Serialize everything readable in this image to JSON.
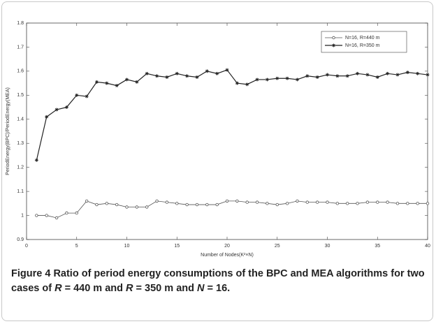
{
  "chart_data": {
    "type": "line",
    "xlabel": "Number of Nodes(K²×N)",
    "ylabel": "PeriodEnergy(BPC)/PeriodEnergy(MEA)",
    "x": [
      1,
      2,
      3,
      4,
      5,
      6,
      7,
      8,
      9,
      10,
      11,
      12,
      13,
      14,
      15,
      16,
      17,
      18,
      19,
      20,
      21,
      22,
      23,
      24,
      25,
      26,
      27,
      28,
      29,
      30,
      31,
      32,
      33,
      34,
      35,
      36,
      37,
      38,
      39,
      40
    ],
    "series": [
      {
        "name": "N=16, R=440 m",
        "color": "#555555",
        "marker": "circle",
        "values": [
          1.0,
          1.0,
          0.99,
          1.01,
          1.01,
          1.06,
          1.045,
          1.05,
          1.045,
          1.035,
          1.035,
          1.035,
          1.06,
          1.055,
          1.05,
          1.045,
          1.045,
          1.045,
          1.045,
          1.06,
          1.06,
          1.055,
          1.055,
          1.05,
          1.045,
          1.05,
          1.06,
          1.055,
          1.055,
          1.055,
          1.05,
          1.05,
          1.05,
          1.055,
          1.055,
          1.055,
          1.05,
          1.05,
          1.05,
          1.05
        ]
      },
      {
        "name": "N=16, R=350 m",
        "color": "#222222",
        "marker": "star",
        "values": [
          1.23,
          1.41,
          1.44,
          1.45,
          1.5,
          1.495,
          1.555,
          1.55,
          1.54,
          1.565,
          1.555,
          1.59,
          1.58,
          1.575,
          1.59,
          1.58,
          1.575,
          1.6,
          1.59,
          1.605,
          1.55,
          1.545,
          1.565,
          1.565,
          1.57,
          1.57,
          1.565,
          1.58,
          1.575,
          1.585,
          1.58,
          1.58,
          1.59,
          1.585,
          1.575,
          1.59,
          1.585,
          1.595,
          1.59,
          1.585
        ]
      }
    ],
    "xlim": [
      0,
      40
    ],
    "xticks": [
      0,
      5,
      10,
      15,
      20,
      25,
      30,
      35,
      40
    ],
    "ylim": [
      0.9,
      1.8
    ],
    "yticks": [
      0.9,
      1,
      1.1,
      1.2,
      1.3,
      1.4,
      1.5,
      1.6,
      1.7,
      1.8
    ],
    "legend": "upper right",
    "grid": false
  },
  "caption": {
    "label": "Figure 4",
    "parts": [
      "Ratio of period energy consumptions of the BPC and MEA algorithms for two cases of ",
      "R",
      " = 440 m and ",
      "R",
      " = 350 m and ",
      "N",
      " = 16."
    ]
  }
}
